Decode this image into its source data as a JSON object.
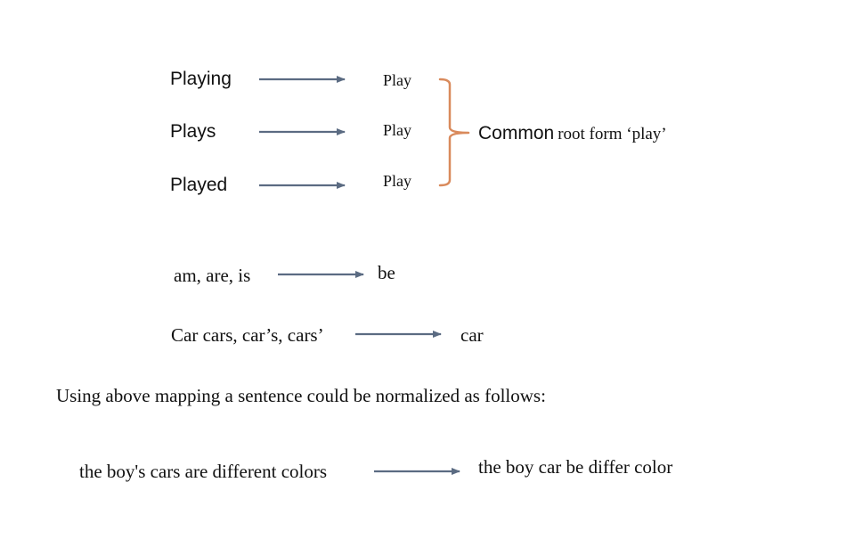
{
  "stemming": {
    "words": [
      {
        "word": "Playing",
        "root": "Play"
      },
      {
        "word": "Plays",
        "root": "Play"
      },
      {
        "word": "Played",
        "root": "Play"
      }
    ],
    "bracket_label_common": "Common",
    "bracket_label_rest": "root form ‘play’"
  },
  "lemmas": [
    {
      "source": "am, are, is",
      "target": "be"
    },
    {
      "source": "Car cars, car’s, cars’",
      "target": "car"
    }
  ],
  "explanation": "Using above mapping a sentence could be normalized as follows:",
  "example": {
    "original": "the boy's cars are different colors",
    "normalized": "the boy car be differ color"
  },
  "colors": {
    "arrow": "#5B6B82",
    "bracket": "#D98A5C",
    "text": "#111111"
  }
}
